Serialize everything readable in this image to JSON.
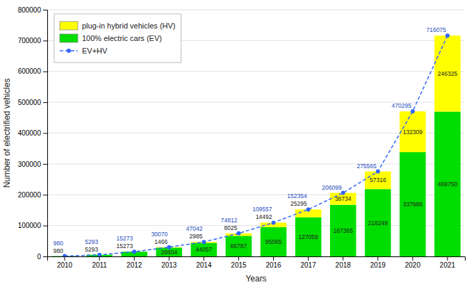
{
  "chart_data": {
    "type": "bar",
    "stacked": true,
    "data_labels": true,
    "grid": true,
    "legend": "upper left",
    "xlabel": "Years",
    "ylabel": "Number of electrified vehicles",
    "categories": [
      "2010",
      "2011",
      "2012",
      "2013",
      "2014",
      "2015",
      "2016",
      "2017",
      "2018",
      "2019",
      "2020",
      "2021"
    ],
    "series": [
      {
        "name": "100% electric cars (EV)",
        "color": "#00DD00",
        "values": [
          980,
          5293,
          15273,
          28604,
          44057,
          66787,
          95065,
          127059,
          167365,
          218249,
          337986,
          469750
        ]
      },
      {
        "name": "plug-in hybrid vehicles (HV)",
        "color": "#FFFF00",
        "values": [
          0,
          0,
          0,
          1466,
          2985,
          8025,
          14492,
          25295,
          38734,
          57316,
          132309,
          246325
        ],
        "value_labels": [
          null,
          null,
          null,
          "1466",
          "2985",
          "8025",
          "14492",
          "25295",
          "38734",
          "57316",
          "132309",
          "246325"
        ]
      },
      {
        "name": "EV+HV",
        "type": "line",
        "color": "#3366FF",
        "line_style": "dashed",
        "marker": "circle",
        "values": [
          980,
          5293,
          15273,
          30070,
          47042,
          74812,
          109557,
          152354,
          206099,
          275565,
          470295,
          716075
        ]
      }
    ],
    "ylim": [
      0,
      800000
    ],
    "yticks": [
      0,
      100000,
      200000,
      300000,
      400000,
      500000,
      600000,
      700000,
      800000
    ]
  }
}
